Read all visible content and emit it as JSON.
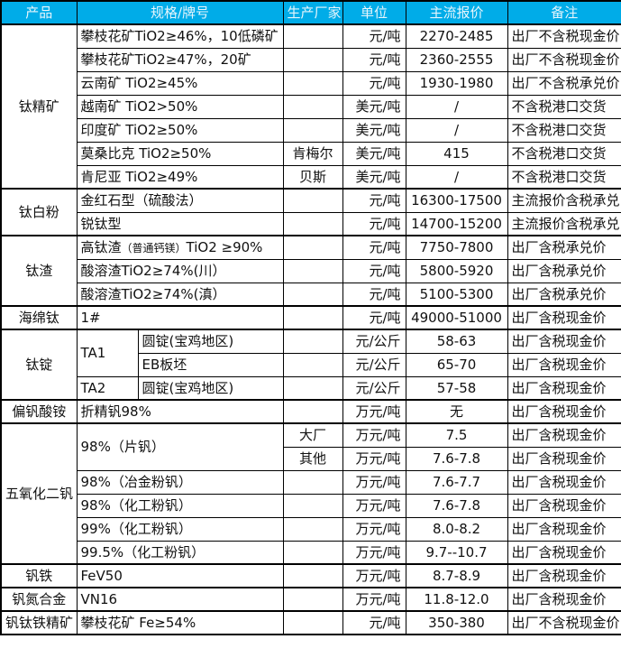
{
  "header": {
    "bg_color": "#00ACE8",
    "text_color": "#E6F5FC",
    "columns": [
      {
        "name": "product",
        "label": "产品",
        "colspan": 1
      },
      {
        "name": "spec",
        "label": "规格/牌号",
        "colspan": 2
      },
      {
        "name": "manufacturer",
        "label": "生产厂家",
        "colspan": 1
      },
      {
        "name": "unit",
        "label": "单位",
        "colspan": 1
      },
      {
        "name": "price",
        "label": "主流报价",
        "colspan": 1
      },
      {
        "name": "note",
        "label": "备注",
        "colspan": 1
      }
    ]
  },
  "marker_color": "#1E7B34",
  "table": {
    "rows": [
      {
        "group_start": true,
        "cells": [
          {
            "name": "product",
            "t": "钛精矿",
            "rowspan": 7,
            "align": "center"
          },
          {
            "name": "spec",
            "t": "攀枝花矿TiO2≥46%，10低磷矿",
            "colspan": 2,
            "align": "left"
          },
          {
            "name": "manufacturer",
            "t": "",
            "align": "center"
          },
          {
            "name": "unit",
            "t": "元/吨",
            "align": "right"
          },
          {
            "name": "price",
            "t": "2270-2485",
            "align": "center"
          },
          {
            "name": "note",
            "t": "出厂不含税现金价",
            "align": "left"
          }
        ]
      },
      {
        "cells": [
          {
            "name": "spec",
            "t": "攀枝花矿TiO2≥47%，20矿",
            "colspan": 2,
            "align": "left"
          },
          {
            "name": "manufacturer",
            "t": "",
            "align": "center"
          },
          {
            "name": "unit",
            "t": "元/吨",
            "align": "right"
          },
          {
            "name": "price",
            "t": "2360-2555",
            "align": "center"
          },
          {
            "name": "note",
            "t": "出厂不含税现金价",
            "align": "left"
          }
        ]
      },
      {
        "cells": [
          {
            "name": "spec",
            "t": "云南矿 TiO2≥45%",
            "colspan": 2,
            "align": "left"
          },
          {
            "name": "manufacturer",
            "t": "",
            "align": "center"
          },
          {
            "name": "unit",
            "t": "元/吨",
            "align": "right"
          },
          {
            "name": "price",
            "t": "1930-1980",
            "align": "center"
          },
          {
            "name": "note",
            "t": "出厂不含税承兑价",
            "align": "left"
          }
        ]
      },
      {
        "cells": [
          {
            "name": "spec",
            "t": "越南矿 TiO2>50%",
            "colspan": 2,
            "align": "left"
          },
          {
            "name": "manufacturer",
            "t": "",
            "align": "center"
          },
          {
            "name": "unit",
            "t": "美元/吨",
            "align": "right"
          },
          {
            "name": "price",
            "t": "/",
            "align": "center"
          },
          {
            "name": "note",
            "t": "不含税港口交货",
            "align": "left"
          }
        ]
      },
      {
        "cells": [
          {
            "name": "spec",
            "t": "印度矿 TiO2≥50%",
            "colspan": 2,
            "align": "left"
          },
          {
            "name": "manufacturer",
            "t": "",
            "align": "center"
          },
          {
            "name": "unit",
            "t": "美元/吨",
            "align": "right"
          },
          {
            "name": "price",
            "t": "/",
            "align": "center"
          },
          {
            "name": "note",
            "t": "不含税港口交货",
            "align": "left"
          }
        ]
      },
      {
        "cells": [
          {
            "name": "spec",
            "t": "莫桑比克 TiO2≥50%",
            "colspan": 2,
            "align": "left"
          },
          {
            "name": "manufacturer",
            "t": "肯梅尔",
            "align": "center"
          },
          {
            "name": "unit",
            "t": "美元/吨",
            "align": "right"
          },
          {
            "name": "price",
            "t": "415",
            "align": "center"
          },
          {
            "name": "note",
            "t": "不含税港口交货",
            "align": "left"
          }
        ]
      },
      {
        "cells": [
          {
            "name": "spec",
            "t": "肯尼亚 TiO2≥49%",
            "colspan": 2,
            "align": "left"
          },
          {
            "name": "manufacturer",
            "t": "贝斯",
            "align": "center"
          },
          {
            "name": "unit",
            "t": "美元/吨",
            "align": "right"
          },
          {
            "name": "price",
            "t": "/",
            "align": "center"
          },
          {
            "name": "note",
            "t": "不含税港口交货",
            "align": "left"
          }
        ]
      },
      {
        "group_start": true,
        "cells": [
          {
            "name": "product",
            "t": "钛白粉",
            "rowspan": 2,
            "align": "center"
          },
          {
            "name": "spec",
            "t": "金红石型（硫酸法）",
            "colspan": 2,
            "align": "left"
          },
          {
            "name": "manufacturer",
            "t": "",
            "align": "center"
          },
          {
            "name": "unit",
            "t": "元/吨",
            "align": "right"
          },
          {
            "name": "price",
            "t": "16300-17500",
            "align": "center",
            "marker": true
          },
          {
            "name": "note",
            "t": "主流报价含税承兑",
            "align": "left"
          }
        ]
      },
      {
        "cells": [
          {
            "name": "spec",
            "t": "锐钛型",
            "colspan": 2,
            "align": "left"
          },
          {
            "name": "manufacturer",
            "t": "",
            "align": "center"
          },
          {
            "name": "unit",
            "t": "元/吨",
            "align": "right"
          },
          {
            "name": "price",
            "t": "14700-15200",
            "align": "center"
          },
          {
            "name": "note",
            "t": "主流报价含税承兑",
            "align": "left"
          }
        ]
      },
      {
        "group_start": true,
        "cells": [
          {
            "name": "product",
            "t": "钛渣",
            "rowspan": 3,
            "align": "center"
          },
          {
            "name": "spec",
            "colspan": 2,
            "align": "left",
            "parts": [
              {
                "t": "高钛渣"
              },
              {
                "t": "（普通钙镁）",
                "small": true
              },
              {
                "t": "TiO2 ≥90%"
              }
            ]
          },
          {
            "name": "manufacturer",
            "t": "",
            "align": "center"
          },
          {
            "name": "unit",
            "t": "元/吨",
            "align": "right"
          },
          {
            "name": "price",
            "t": "7750-7800",
            "align": "center"
          },
          {
            "name": "note",
            "t": "出厂含税承兑价",
            "align": "left"
          }
        ]
      },
      {
        "cells": [
          {
            "name": "spec",
            "t": "酸溶渣TiO2≥74%(川）",
            "colspan": 2,
            "align": "left"
          },
          {
            "name": "manufacturer",
            "t": "",
            "align": "center"
          },
          {
            "name": "unit",
            "t": "元/吨",
            "align": "right"
          },
          {
            "name": "price",
            "t": "5800-5920",
            "align": "center"
          },
          {
            "name": "note",
            "t": "出厂含税承兑价",
            "align": "left"
          }
        ]
      },
      {
        "cells": [
          {
            "name": "spec",
            "t": "酸溶渣TiO2≥74%(滇）",
            "colspan": 2,
            "align": "left"
          },
          {
            "name": "manufacturer",
            "t": "",
            "align": "center"
          },
          {
            "name": "unit",
            "t": "元/吨",
            "align": "right"
          },
          {
            "name": "price",
            "t": "5100-5300",
            "align": "center"
          },
          {
            "name": "note",
            "t": "出厂含税承兑价",
            "align": "left"
          }
        ]
      },
      {
        "group_start": true,
        "cells": [
          {
            "name": "product",
            "t": "海绵钛",
            "align": "center"
          },
          {
            "name": "spec",
            "t": "1#",
            "colspan": 2,
            "align": "left"
          },
          {
            "name": "manufacturer",
            "t": "",
            "align": "center"
          },
          {
            "name": "unit",
            "t": "元/吨",
            "align": "right"
          },
          {
            "name": "price",
            "t": "49000-51000",
            "align": "center"
          },
          {
            "name": "note",
            "t": "出厂含税现金价",
            "align": "left"
          }
        ]
      },
      {
        "group_start": true,
        "cells": [
          {
            "name": "product",
            "t": "钛锭",
            "rowspan": 3,
            "align": "center"
          },
          {
            "name": "grade",
            "t": "TA1",
            "rowspan": 2,
            "align": "left"
          },
          {
            "name": "subspec",
            "t": "圆锭(宝鸡地区)",
            "align": "left"
          },
          {
            "name": "manufacturer",
            "t": "",
            "align": "center"
          },
          {
            "name": "unit",
            "t": "元/公斤",
            "align": "right"
          },
          {
            "name": "price",
            "t": "58-63",
            "align": "center"
          },
          {
            "name": "note",
            "t": "出厂含税现金价",
            "align": "left"
          }
        ]
      },
      {
        "cells": [
          {
            "name": "subspec",
            "t": "EB板坯",
            "align": "left"
          },
          {
            "name": "manufacturer",
            "t": "",
            "align": "center"
          },
          {
            "name": "unit",
            "t": "元/公斤",
            "align": "right"
          },
          {
            "name": "price",
            "t": "65-70",
            "align": "center",
            "marker": true
          },
          {
            "name": "note",
            "t": "出厂含税现金价",
            "align": "left"
          }
        ]
      },
      {
        "cells": [
          {
            "name": "grade",
            "t": "TA2",
            "align": "left"
          },
          {
            "name": "subspec",
            "t": "圆锭(宝鸡地区)",
            "align": "left"
          },
          {
            "name": "manufacturer",
            "t": "",
            "align": "center"
          },
          {
            "name": "unit",
            "t": "元/公斤",
            "align": "right"
          },
          {
            "name": "price",
            "t": "57-58",
            "align": "center"
          },
          {
            "name": "note",
            "t": "出厂含税现金价",
            "align": "left"
          }
        ]
      },
      {
        "group_start": true,
        "cells": [
          {
            "name": "product",
            "t": "偏钒酸铵",
            "align": "center"
          },
          {
            "name": "spec",
            "t": "折精钒98%",
            "colspan": 2,
            "align": "left"
          },
          {
            "name": "manufacturer",
            "t": "",
            "align": "center"
          },
          {
            "name": "unit",
            "t": "万元/吨",
            "align": "right"
          },
          {
            "name": "price",
            "t": "无",
            "align": "center"
          },
          {
            "name": "note",
            "t": "出厂含税现金价",
            "align": "left"
          }
        ]
      },
      {
        "group_start": true,
        "cells": [
          {
            "name": "product",
            "t": "五氧化二钒",
            "rowspan": 6,
            "align": "center"
          },
          {
            "name": "spec",
            "t": "98%（片钒）",
            "colspan": 2,
            "rowspan": 2,
            "align": "left"
          },
          {
            "name": "manufacturer",
            "t": "大厂",
            "align": "center"
          },
          {
            "name": "unit",
            "t": "万元/吨",
            "align": "right"
          },
          {
            "name": "price",
            "t": "7.5",
            "align": "center"
          },
          {
            "name": "note",
            "t": "出厂含税现金价",
            "align": "left"
          }
        ]
      },
      {
        "cells": [
          {
            "name": "manufacturer",
            "t": "其他",
            "align": "center"
          },
          {
            "name": "unit",
            "t": "万元/吨",
            "align": "right"
          },
          {
            "name": "price",
            "t": "7.6-7.8",
            "align": "center"
          },
          {
            "name": "note",
            "t": "出厂含税现金价",
            "align": "left"
          }
        ]
      },
      {
        "cells": [
          {
            "name": "spec",
            "t": "98%（冶金粉钒）",
            "colspan": 2,
            "align": "left"
          },
          {
            "name": "manufacturer",
            "t": "",
            "align": "center"
          },
          {
            "name": "unit",
            "t": "万元/吨",
            "align": "right"
          },
          {
            "name": "price",
            "t": "7.6-7.7",
            "align": "center"
          },
          {
            "name": "note",
            "t": "出厂含税现金价",
            "align": "left"
          }
        ]
      },
      {
        "cells": [
          {
            "name": "spec",
            "t": "98%（化工粉钒）",
            "colspan": 2,
            "align": "left"
          },
          {
            "name": "manufacturer",
            "t": "",
            "align": "center"
          },
          {
            "name": "unit",
            "t": "万元/吨",
            "align": "right"
          },
          {
            "name": "price",
            "t": "7.6-7.8",
            "align": "center"
          },
          {
            "name": "note",
            "t": "出厂含税现金价",
            "align": "left"
          }
        ]
      },
      {
        "cells": [
          {
            "name": "spec",
            "t": "99%（化工粉钒）",
            "colspan": 2,
            "align": "left"
          },
          {
            "name": "manufacturer",
            "t": "",
            "align": "center"
          },
          {
            "name": "unit",
            "t": "万元/吨",
            "align": "right"
          },
          {
            "name": "price",
            "t": "8.0-8.2",
            "align": "center"
          },
          {
            "name": "note",
            "t": "出厂含税现金价",
            "align": "left"
          }
        ]
      },
      {
        "cells": [
          {
            "name": "spec",
            "t": "99.5%（化工粉钒）",
            "colspan": 2,
            "align": "left"
          },
          {
            "name": "manufacturer",
            "t": "",
            "align": "center"
          },
          {
            "name": "unit",
            "t": "万元/吨",
            "align": "right"
          },
          {
            "name": "price",
            "t": "9.7--10.7",
            "align": "center"
          },
          {
            "name": "note",
            "t": "出厂含税现金价",
            "align": "left"
          }
        ]
      },
      {
        "group_start": true,
        "cells": [
          {
            "name": "product",
            "t": "钒铁",
            "align": "center"
          },
          {
            "name": "spec",
            "t": "FeV50",
            "colspan": 2,
            "align": "left"
          },
          {
            "name": "manufacturer",
            "t": "",
            "align": "center"
          },
          {
            "name": "unit",
            "t": "万元/吨",
            "align": "right"
          },
          {
            "name": "price",
            "t": "8.7-8.9",
            "align": "center"
          },
          {
            "name": "note",
            "t": "出厂含税现金价",
            "align": "left"
          }
        ]
      },
      {
        "group_start": true,
        "cells": [
          {
            "name": "product",
            "t": "钒氮合金",
            "align": "center"
          },
          {
            "name": "spec",
            "t": "VN16",
            "colspan": 2,
            "align": "left"
          },
          {
            "name": "manufacturer",
            "t": "",
            "align": "center"
          },
          {
            "name": "unit",
            "t": "万元/吨",
            "align": "right"
          },
          {
            "name": "price",
            "t": "11.8-12.0",
            "align": "center"
          },
          {
            "name": "note",
            "t": "出厂含税现金价",
            "align": "left"
          }
        ]
      },
      {
        "group_start": true,
        "cells": [
          {
            "name": "product",
            "t": "钒钛铁精矿",
            "align": "center"
          },
          {
            "name": "spec",
            "t": "攀枝花矿 Fe≥54%",
            "colspan": 2,
            "align": "left"
          },
          {
            "name": "manufacturer",
            "t": "",
            "align": "center"
          },
          {
            "name": "unit",
            "t": "元/吨",
            "align": "right"
          },
          {
            "name": "price",
            "t": "350-380",
            "align": "center"
          },
          {
            "name": "note",
            "t": "出厂不含税现金价",
            "align": "left"
          }
        ]
      }
    ]
  }
}
